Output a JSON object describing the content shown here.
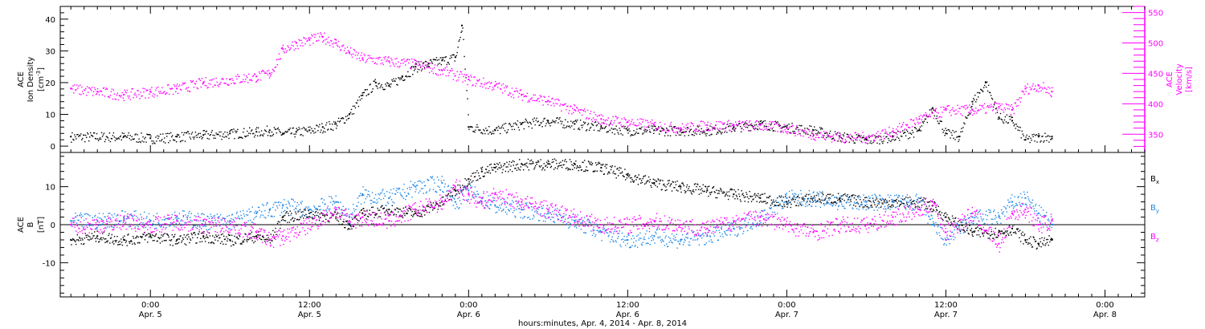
{
  "chart_data": [
    {
      "type": "scatter",
      "ylabel_left_lines": [
        "ACE",
        "Ion Density",
        "[cm^-3]"
      ],
      "ylabel_right_lines": [
        "ACE",
        "Velocity",
        "[km/s]"
      ],
      "ylim_left": [
        -2,
        44
      ],
      "ylim_right": [
        320,
        560
      ],
      "yticks_left": [
        "0",
        "10",
        "20",
        "30",
        "40"
      ],
      "yticks_right": [
        "350",
        "400",
        "450",
        "500",
        "550"
      ],
      "colors": {
        "density": "#000000",
        "velocity": "#ff00ff"
      },
      "series": [
        {
          "key": "density",
          "axis": "left",
          "color": "#000000",
          "x": [
            -6,
            -2,
            0,
            2,
            4,
            6,
            8,
            9,
            10,
            11,
            12,
            13,
            14,
            15,
            16,
            17,
            18,
            19,
            20,
            21,
            22,
            23,
            23.5,
            24,
            26,
            28,
            30,
            32,
            34,
            36,
            38,
            40,
            42,
            44,
            46,
            48,
            50,
            52,
            54,
            56,
            58,
            59,
            60,
            61,
            62,
            63,
            64,
            65,
            66,
            67,
            68
          ],
          "y": [
            3,
            3,
            2.5,
            3,
            3.5,
            4,
            4.5,
            5,
            4,
            4.5,
            5,
            6,
            7,
            10,
            16,
            20,
            19,
            22,
            25,
            26,
            27,
            28,
            38,
            6,
            5,
            7,
            8,
            7,
            6,
            5,
            5,
            5,
            5,
            6,
            7,
            6,
            5,
            3,
            2,
            3,
            5,
            12,
            4,
            3,
            14,
            20,
            9,
            8,
            2,
            3,
            3
          ]
        },
        {
          "key": "velocity",
          "axis": "right",
          "color": "#ff00ff",
          "x": [
            -6,
            -4,
            -2,
            0,
            2,
            4,
            6,
            8,
            9,
            10,
            11,
            12,
            13,
            14,
            15,
            16,
            18,
            20,
            22,
            24,
            26,
            28,
            30,
            32,
            34,
            36,
            38,
            40,
            42,
            44,
            46,
            48,
            50,
            52,
            54,
            56,
            58,
            60,
            62,
            64,
            65,
            66,
            67,
            68
          ],
          "y": [
            425,
            420,
            415,
            420,
            425,
            435,
            440,
            445,
            450,
            490,
            500,
            505,
            510,
            500,
            485,
            475,
            470,
            465,
            455,
            440,
            430,
            415,
            405,
            390,
            375,
            370,
            365,
            360,
            365,
            365,
            365,
            360,
            350,
            345,
            345,
            355,
            375,
            390,
            390,
            395,
            390,
            425,
            430,
            420
          ]
        }
      ]
    },
    {
      "type": "scatter",
      "ylabel_left_lines": [
        "ACE",
        "B",
        "[nT]"
      ],
      "ylim": [
        -19,
        19
      ],
      "yticks": [
        "-10",
        "0",
        "10"
      ],
      "colors": {
        "bx": "#000000",
        "by": "#1e88e5",
        "bz": "#ff00ff"
      },
      "series": [
        {
          "name": "B_x",
          "label_main": "B",
          "label_sub": "x",
          "color": "#000000",
          "x": [
            -6,
            -4,
            -2,
            0,
            2,
            4,
            6,
            8,
            9,
            10,
            12,
            14,
            15,
            16,
            18,
            20,
            22,
            23,
            24,
            25,
            26,
            28,
            30,
            32,
            34,
            36,
            38,
            40,
            42,
            44,
            46,
            48,
            50,
            52,
            54,
            56,
            58,
            59,
            60,
            62,
            64,
            65,
            66,
            67,
            68
          ],
          "y": [
            -4,
            -3,
            -4,
            -3,
            -4,
            -3,
            -4,
            -3,
            -4,
            2,
            3,
            2,
            0,
            3,
            4,
            3,
            6,
            9,
            12,
            14,
            15,
            16,
            16,
            16,
            15,
            13,
            11,
            10,
            9,
            8,
            7,
            6,
            7,
            7,
            6,
            6,
            6,
            5,
            2,
            -2,
            -2,
            -1,
            -4,
            -5,
            -4
          ]
        },
        {
          "name": "B_y",
          "label_main": "B",
          "label_sub": "y",
          "color": "#1e88e5",
          "x": [
            -6,
            -4,
            -2,
            0,
            2,
            4,
            6,
            8,
            9,
            10,
            12,
            14,
            15,
            16,
            18,
            20,
            22,
            23,
            24,
            25,
            26,
            28,
            30,
            32,
            34,
            36,
            38,
            40,
            42,
            44,
            46,
            48,
            50,
            52,
            54,
            56,
            58,
            59,
            60,
            62,
            64,
            65,
            66,
            67,
            68
          ],
          "y": [
            1,
            1,
            2,
            1,
            2,
            1,
            1,
            3,
            4,
            5,
            4,
            6,
            2,
            8,
            7,
            10,
            11,
            6,
            9,
            7,
            5,
            4,
            3,
            1,
            -2,
            -4,
            -3,
            -4,
            -3,
            -1,
            2,
            7,
            7,
            6,
            6,
            6,
            6,
            0,
            -4,
            2,
            2,
            6,
            7,
            3,
            0
          ]
        },
        {
          "name": "B_z",
          "label_main": "B",
          "label_sub": "z",
          "color": "#ff00ff",
          "x": [
            -6,
            -4,
            -2,
            0,
            2,
            4,
            6,
            8,
            9,
            10,
            12,
            14,
            15,
            16,
            18,
            20,
            22,
            23,
            24,
            25,
            26,
            28,
            30,
            32,
            34,
            36,
            38,
            40,
            42,
            44,
            46,
            48,
            50,
            52,
            54,
            56,
            58,
            59,
            60,
            62,
            64,
            65,
            66,
            67,
            68
          ],
          "y": [
            0,
            0,
            1,
            0,
            1,
            0,
            0,
            -2,
            -4,
            -3,
            0,
            4,
            1,
            2,
            1,
            4,
            6,
            10,
            8,
            6,
            8,
            6,
            4,
            2,
            0,
            0,
            1,
            0,
            -1,
            1,
            2,
            0,
            -2,
            0,
            0,
            2,
            4,
            6,
            -2,
            3,
            -5,
            3,
            4,
            0,
            1
          ]
        }
      ]
    }
  ],
  "x_axis": {
    "tick_labels": [
      {
        "hours": 0,
        "time": "0:00",
        "date": "Apr. 5"
      },
      {
        "hours": 12,
        "time": "12:00",
        "date": "Apr. 5"
      },
      {
        "hours": 24,
        "time": "0:00",
        "date": "Apr. 6"
      },
      {
        "hours": 36,
        "time": "12:00",
        "date": "Apr. 6"
      },
      {
        "hours": 48,
        "time": "0:00",
        "date": "Apr. 7"
      },
      {
        "hours": 60,
        "time": "12:00",
        "date": "Apr. 7"
      },
      {
        "hours": 72,
        "time": "0:00",
        "date": "Apr. 8"
      }
    ],
    "xlabel": "hours:minutes, Apr.  4, 2014 - Apr.  8, 2014",
    "xlim": [
      -6.8,
      75
    ],
    "minor_tick_step_hours": 1
  }
}
